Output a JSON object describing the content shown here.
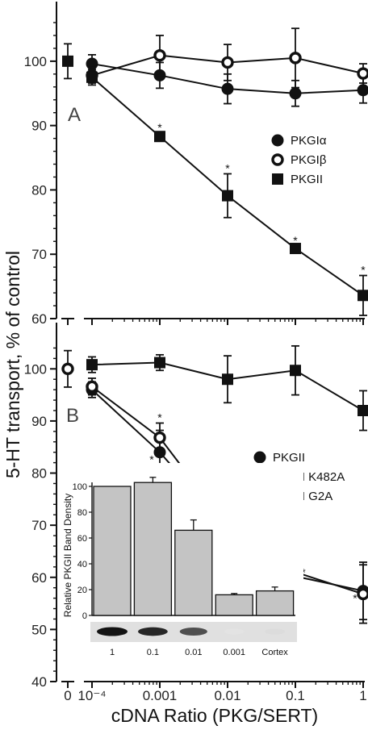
{
  "figure": {
    "ylabel": "5-HT transport, % of control",
    "xlabel": "cDNA Ratio (PKG/SERT)"
  },
  "chart_data": [
    {
      "type": "line",
      "panel_label": "A",
      "x_categories": [
        "0",
        "10⁻⁴",
        "0.001",
        "0.01",
        "0.1",
        "1"
      ],
      "y_ticks": [
        60,
        70,
        80,
        90,
        100
      ],
      "ylim": [
        60,
        106
      ],
      "legend": [
        "PKGIα",
        "PKGIβ",
        "PKGII"
      ],
      "series": [
        {
          "name": "PKGIα",
          "marker": "filled-circle",
          "x": [
            0.0001,
            0.001,
            0.01,
            0.1,
            1
          ],
          "y": [
            99.6,
            97.8,
            95.7,
            95.0,
            95.5
          ],
          "err": [
            1.4,
            2.0,
            2.3,
            2.0,
            2.0
          ],
          "sig": [
            false,
            false,
            false,
            false,
            false
          ]
        },
        {
          "name": "PKGIβ",
          "marker": "open-circle",
          "x": [
            0.0001,
            0.001,
            0.01,
            0.1,
            1
          ],
          "y": [
            97.8,
            100.9,
            99.8,
            100.5,
            98.1
          ],
          "err": [
            1.2,
            3.1,
            2.8,
            4.6,
            1.5
          ],
          "sig": [
            false,
            false,
            false,
            false,
            false
          ]
        },
        {
          "name": "PKGII",
          "marker": "filled-square",
          "x": [
            0.0001,
            0.001,
            0.01,
            0.1,
            1
          ],
          "y": [
            97.5,
            88.3,
            79.1,
            70.9,
            63.6
          ],
          "err": [
            1.2,
            0.5,
            3.4,
            0.4,
            3.1
          ],
          "sig": [
            false,
            true,
            true,
            true,
            true
          ]
        }
      ],
      "control": {
        "x": "0",
        "y": 100,
        "err": 2.7,
        "marker": "filled-square"
      }
    },
    {
      "type": "line",
      "panel_label": "B",
      "x_categories": [
        "0",
        "10⁻⁴",
        "0.001",
        "0.01",
        "0.1",
        "1"
      ],
      "y_ticks": [
        40,
        50,
        60,
        70,
        80,
        90,
        100
      ],
      "ylim": [
        40,
        105
      ],
      "legend": [
        "PKGII",
        "PKGII K482A",
        "PKGII G2A"
      ],
      "series": [
        {
          "name": "PKGII",
          "marker": "filled-circle",
          "x": [
            0.0001,
            0.001,
            0.01,
            0.1,
            1
          ],
          "y": [
            96.0,
            84.0,
            69.2,
            60.2,
            57.4
          ],
          "err": [
            1.5,
            4.2,
            3.2,
            2.0,
            5.5
          ],
          "sig": [
            false,
            true,
            true,
            true,
            true
          ]
        },
        {
          "name": "PKGII K482A",
          "marker": "open-circle",
          "x": [
            0.0001,
            0.001,
            0.01,
            0.1,
            1
          ],
          "y": [
            96.6,
            86.8,
            69.7,
            61.0,
            56.8
          ],
          "err": [
            1.6,
            2.8,
            7.5,
            3.0,
            5.6
          ],
          "sig": [
            false,
            true,
            true,
            true,
            true
          ]
        },
        {
          "name": "PKGII G2A",
          "marker": "filled-square",
          "x": [
            0.0001,
            0.001,
            0.01,
            0.1,
            1
          ],
          "y": [
            100.8,
            101.2,
            98.0,
            99.7,
            92.0
          ],
          "err": [
            1.5,
            1.5,
            4.5,
            4.7,
            3.8
          ],
          "sig": [
            false,
            false,
            false,
            false,
            false
          ]
        }
      ],
      "control": {
        "x": "0",
        "y": 100,
        "err": 3.5,
        "marker": "open-circle"
      }
    },
    {
      "type": "bar",
      "inset": true,
      "ylabel": "Relative PKGII Band Density",
      "categories": [
        "1",
        "0.1",
        "0.01",
        "0.001",
        "Cortex"
      ],
      "values": [
        100,
        103,
        66,
        16,
        19
      ],
      "err": [
        0,
        4,
        8,
        1,
        3
      ],
      "y_ticks": [
        0,
        20,
        40,
        60,
        80,
        100
      ],
      "ylim": [
        0,
        105
      ]
    }
  ]
}
